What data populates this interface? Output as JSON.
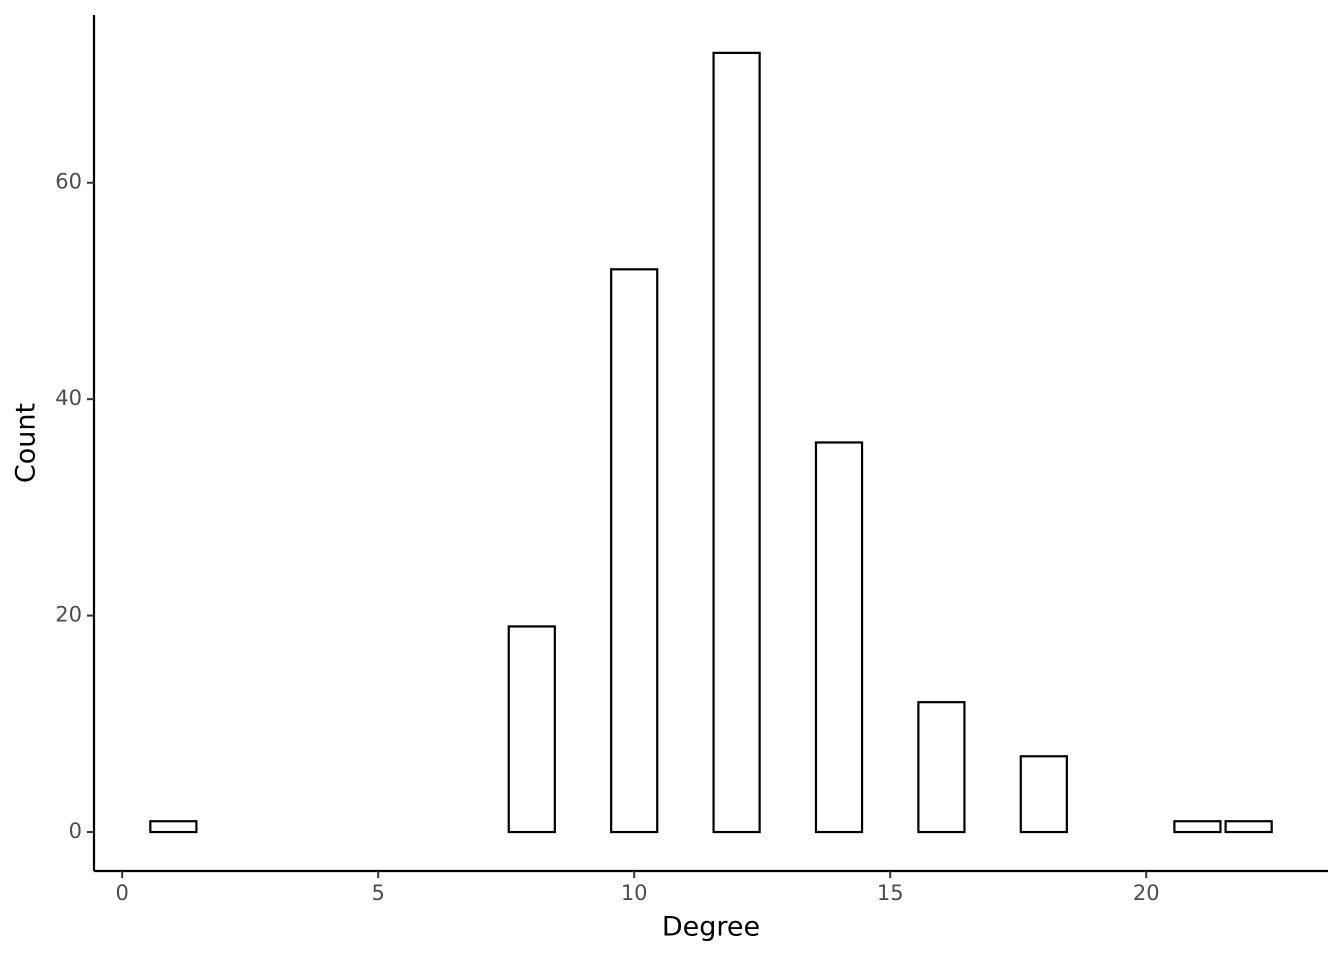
{
  "chart_data": {
    "type": "bar",
    "x_label": "Degree",
    "y_label": "Count",
    "x": [
      1,
      8,
      10,
      12,
      14,
      16,
      18,
      21,
      22
    ],
    "values": [
      1,
      19,
      52,
      72,
      36,
      12,
      7,
      1,
      1
    ],
    "color": "#ffffff",
    "edge_color": "#000000",
    "xlim": [
      -0.55,
      23.55
    ],
    "ylim": [
      -3.6,
      75.5
    ],
    "xticks": [
      0,
      5,
      10,
      15,
      20
    ],
    "yticks": [
      0,
      20,
      40,
      60
    ],
    "grid": false
  }
}
